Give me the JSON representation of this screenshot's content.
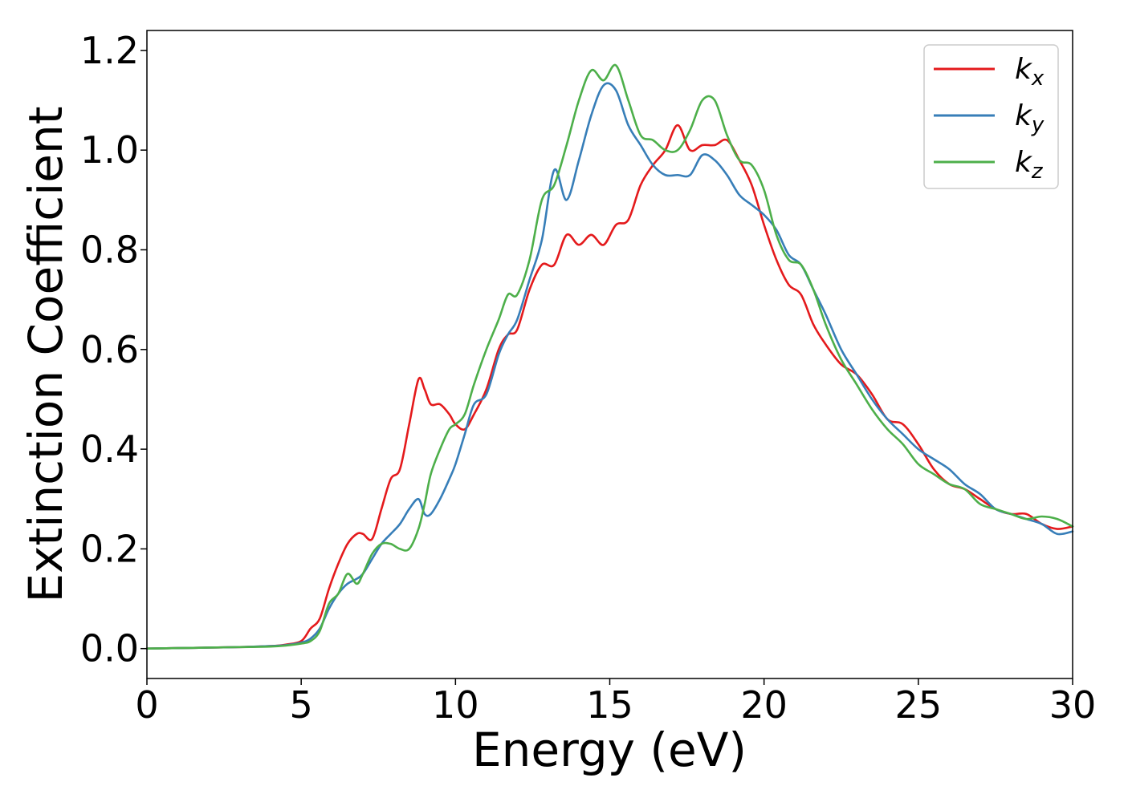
{
  "chart_data": {
    "type": "line",
    "title": "",
    "xlabel": "Energy (eV)",
    "ylabel": "Extinction Coefficient",
    "xlim": [
      0,
      30
    ],
    "ylim": [
      -0.06,
      1.24
    ],
    "xticks": [
      0,
      5,
      10,
      15,
      20,
      25,
      30
    ],
    "yticks": [
      0.0,
      0.2,
      0.4,
      0.6,
      0.8,
      1.0,
      1.2
    ],
    "xtick_labels": [
      "0",
      "5",
      "10",
      "15",
      "20",
      "25",
      "30"
    ],
    "ytick_labels": [
      "0.0",
      "0.2",
      "0.4",
      "0.6",
      "0.8",
      "1.0",
      "1.2"
    ],
    "grid": false,
    "legend_position": "top-right",
    "series": [
      {
        "name": "k_x",
        "legend_base": "k",
        "legend_sub": "x",
        "color": "#e41a1c",
        "x": [
          0,
          1,
          2,
          3,
          4,
          4.5,
          5,
          5.3,
          5.6,
          5.9,
          6.2,
          6.5,
          6.8,
          7.0,
          7.3,
          7.6,
          7.9,
          8.2,
          8.5,
          8.8,
          9.0,
          9.2,
          9.5,
          9.8,
          10.0,
          10.3,
          10.6,
          11.0,
          11.4,
          11.7,
          12.0,
          12.4,
          12.8,
          13.2,
          13.6,
          14.0,
          14.4,
          14.8,
          15.2,
          15.6,
          16.0,
          16.4,
          16.8,
          17.2,
          17.6,
          18.0,
          18.4,
          18.8,
          19.2,
          19.6,
          20.0,
          20.4,
          20.8,
          21.2,
          21.6,
          22.0,
          22.5,
          23.0,
          23.5,
          24.0,
          24.5,
          25.0,
          25.5,
          26.0,
          26.5,
          27.0,
          27.5,
          28.0,
          28.5,
          29.0,
          29.5,
          30.0
        ],
        "y": [
          0.0,
          0.001,
          0.002,
          0.003,
          0.005,
          0.008,
          0.015,
          0.04,
          0.06,
          0.12,
          0.17,
          0.21,
          0.23,
          0.23,
          0.22,
          0.28,
          0.34,
          0.36,
          0.45,
          0.54,
          0.52,
          0.49,
          0.49,
          0.47,
          0.45,
          0.44,
          0.47,
          0.52,
          0.6,
          0.63,
          0.64,
          0.72,
          0.77,
          0.77,
          0.83,
          0.81,
          0.83,
          0.81,
          0.85,
          0.86,
          0.93,
          0.97,
          1.0,
          1.05,
          1.0,
          1.01,
          1.01,
          1.02,
          0.98,
          0.93,
          0.85,
          0.78,
          0.73,
          0.71,
          0.65,
          0.61,
          0.57,
          0.55,
          0.51,
          0.46,
          0.45,
          0.41,
          0.36,
          0.33,
          0.32,
          0.3,
          0.28,
          0.27,
          0.27,
          0.25,
          0.24,
          0.245
        ]
      },
      {
        "name": "k_y",
        "legend_base": "k",
        "legend_sub": "y",
        "color": "#377eb8",
        "x": [
          0,
          1,
          2,
          3,
          4,
          4.5,
          5,
          5.3,
          5.6,
          5.9,
          6.2,
          6.5,
          6.8,
          7.0,
          7.3,
          7.6,
          7.9,
          8.2,
          8.5,
          8.8,
          9.0,
          9.2,
          9.5,
          9.8,
          10.0,
          10.3,
          10.6,
          11.0,
          11.4,
          11.7,
          12.0,
          12.4,
          12.8,
          13.2,
          13.6,
          14.0,
          14.4,
          14.8,
          15.2,
          15.6,
          16.0,
          16.4,
          16.8,
          17.2,
          17.6,
          18.0,
          18.4,
          18.8,
          19.2,
          19.6,
          20.0,
          20.4,
          20.8,
          21.2,
          21.6,
          22.0,
          22.5,
          23.0,
          23.5,
          24.0,
          24.5,
          25.0,
          25.5,
          26.0,
          26.5,
          27.0,
          27.5,
          28.0,
          28.5,
          29.0,
          29.5,
          30.0
        ],
        "y": [
          0.0,
          0.001,
          0.002,
          0.003,
          0.005,
          0.007,
          0.012,
          0.02,
          0.04,
          0.08,
          0.11,
          0.13,
          0.14,
          0.15,
          0.18,
          0.21,
          0.23,
          0.25,
          0.28,
          0.3,
          0.27,
          0.27,
          0.3,
          0.34,
          0.37,
          0.43,
          0.49,
          0.51,
          0.59,
          0.63,
          0.66,
          0.74,
          0.82,
          0.96,
          0.9,
          0.98,
          1.07,
          1.13,
          1.12,
          1.05,
          1.01,
          0.97,
          0.95,
          0.95,
          0.95,
          0.99,
          0.98,
          0.95,
          0.91,
          0.89,
          0.87,
          0.84,
          0.79,
          0.77,
          0.72,
          0.67,
          0.6,
          0.55,
          0.5,
          0.46,
          0.43,
          0.4,
          0.38,
          0.36,
          0.33,
          0.31,
          0.28,
          0.27,
          0.26,
          0.25,
          0.23,
          0.235
        ]
      },
      {
        "name": "k_z",
        "legend_base": "k",
        "legend_sub": "z",
        "color": "#4daf4a",
        "x": [
          0,
          1,
          2,
          3,
          4,
          4.5,
          5,
          5.3,
          5.6,
          5.9,
          6.2,
          6.5,
          6.8,
          7.0,
          7.3,
          7.6,
          7.9,
          8.2,
          8.5,
          8.8,
          9.0,
          9.2,
          9.5,
          9.8,
          10.0,
          10.3,
          10.6,
          11.0,
          11.4,
          11.7,
          12.0,
          12.4,
          12.8,
          13.2,
          13.6,
          14.0,
          14.4,
          14.8,
          15.2,
          15.6,
          16.0,
          16.4,
          16.8,
          17.2,
          17.6,
          18.0,
          18.4,
          18.8,
          19.2,
          19.6,
          20.0,
          20.4,
          20.8,
          21.2,
          21.6,
          22.0,
          22.5,
          23.0,
          23.5,
          24.0,
          24.5,
          25.0,
          25.5,
          26.0,
          26.5,
          27.0,
          27.5,
          28.0,
          28.5,
          29.0,
          29.5,
          30.0
        ],
        "y": [
          0.0,
          0.001,
          0.002,
          0.003,
          0.004,
          0.006,
          0.01,
          0.015,
          0.035,
          0.09,
          0.11,
          0.15,
          0.13,
          0.15,
          0.19,
          0.21,
          0.21,
          0.2,
          0.2,
          0.24,
          0.29,
          0.35,
          0.4,
          0.44,
          0.45,
          0.47,
          0.53,
          0.6,
          0.66,
          0.71,
          0.71,
          0.78,
          0.9,
          0.93,
          1.01,
          1.1,
          1.16,
          1.14,
          1.17,
          1.1,
          1.03,
          1.02,
          1.0,
          1.0,
          1.04,
          1.1,
          1.1,
          1.03,
          0.98,
          0.97,
          0.92,
          0.83,
          0.78,
          0.77,
          0.72,
          0.65,
          0.58,
          0.53,
          0.48,
          0.44,
          0.41,
          0.37,
          0.35,
          0.33,
          0.32,
          0.29,
          0.28,
          0.27,
          0.26,
          0.265,
          0.26,
          0.245
        ]
      }
    ]
  }
}
